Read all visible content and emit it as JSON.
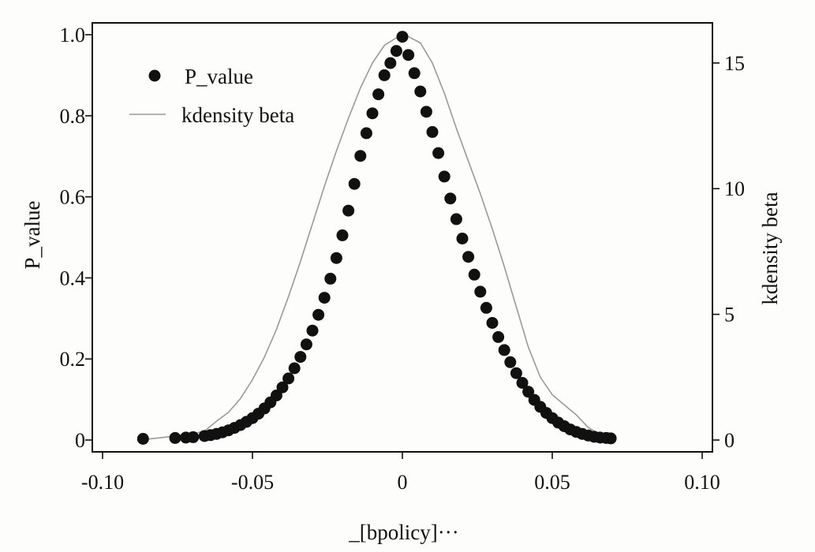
{
  "chart_data": {
    "type": "scatter",
    "xlabel": "_[bpolicy]···",
    "ylabel": "P_value",
    "y2label": "kdensity beta",
    "xlim": [
      -0.1,
      0.1
    ],
    "ylim": [
      0,
      1.0
    ],
    "y2lim": [
      0,
      16
    ],
    "x_ticks": [
      -0.1,
      -0.05,
      0,
      0.05,
      0.1
    ],
    "x_tick_labels": [
      "-0.10",
      "-0.05",
      "0",
      "0.05",
      "0.10"
    ],
    "y_ticks": [
      0,
      0.2,
      0.4,
      0.6,
      0.8,
      1.0
    ],
    "y_tick_labels": [
      "0",
      "0.2",
      "0.4",
      "0.6",
      "0.8",
      "1.0"
    ],
    "y2_ticks": [
      0,
      5,
      10,
      15
    ],
    "y2_tick_labels": [
      "0",
      "5",
      "10",
      "15"
    ],
    "grid": false,
    "legend": {
      "position": "top-left",
      "entries": [
        "P_value",
        "kdensity beta"
      ]
    },
    "series": [
      {
        "name": "P_value",
        "kind": "scatter",
        "axis": "left",
        "color": "#111111",
        "x": [
          -0.0865,
          -0.0758,
          -0.0722,
          -0.0698,
          -0.066,
          -0.064,
          -0.062,
          -0.06,
          -0.058,
          -0.056,
          -0.054,
          -0.052,
          -0.05,
          -0.048,
          -0.046,
          -0.044,
          -0.042,
          -0.04,
          -0.038,
          -0.036,
          -0.034,
          -0.032,
          -0.03,
          -0.028,
          -0.026,
          -0.024,
          -0.022,
          -0.02,
          -0.018,
          -0.016,
          -0.014,
          -0.012,
          -0.01,
          -0.008,
          -0.006,
          -0.004,
          -0.002,
          0.0,
          0.002,
          0.004,
          0.006,
          0.008,
          0.01,
          0.012,
          0.014,
          0.016,
          0.018,
          0.02,
          0.022,
          0.024,
          0.026,
          0.028,
          0.03,
          0.032,
          0.034,
          0.036,
          0.038,
          0.04,
          0.042,
          0.044,
          0.046,
          0.048,
          0.05,
          0.052,
          0.054,
          0.056,
          0.058,
          0.06,
          0.062,
          0.064,
          0.066,
          0.068,
          0.0695
        ],
        "y": [
          0.003,
          0.005,
          0.006,
          0.007,
          0.01,
          0.012,
          0.015,
          0.019,
          0.024,
          0.03,
          0.037,
          0.045,
          0.054,
          0.065,
          0.078,
          0.093,
          0.11,
          0.13,
          0.152,
          0.177,
          0.205,
          0.236,
          0.27,
          0.309,
          0.351,
          0.398,
          0.449,
          0.505,
          0.566,
          0.632,
          0.701,
          0.757,
          0.806,
          0.853,
          0.9,
          0.93,
          0.96,
          0.995,
          0.95,
          0.905,
          0.86,
          0.81,
          0.76,
          0.708,
          0.65,
          0.596,
          0.545,
          0.497,
          0.452,
          0.408,
          0.366,
          0.326,
          0.289,
          0.254,
          0.222,
          0.192,
          0.165,
          0.141,
          0.119,
          0.099,
          0.082,
          0.067,
          0.054,
          0.043,
          0.034,
          0.026,
          0.02,
          0.015,
          0.011,
          0.008,
          0.006,
          0.005,
          0.004
        ]
      },
      {
        "name": "kdensity beta",
        "kind": "line",
        "axis": "right",
        "color": "#9a9a9a",
        "x": [
          -0.0865,
          -0.08,
          -0.075,
          -0.07,
          -0.066,
          -0.062,
          -0.058,
          -0.054,
          -0.05,
          -0.046,
          -0.042,
          -0.038,
          -0.034,
          -0.03,
          -0.026,
          -0.022,
          -0.018,
          -0.014,
          -0.01,
          -0.006,
          -0.002,
          0.002,
          0.006,
          0.01,
          0.014,
          0.018,
          0.022,
          0.026,
          0.03,
          0.034,
          0.038,
          0.042,
          0.046,
          0.05,
          0.054,
          0.058,
          0.062,
          0.066,
          0.07
        ],
        "y": [
          0.02,
          0.1,
          0.18,
          0.25,
          0.35,
          0.75,
          1.1,
          1.65,
          2.4,
          3.3,
          4.4,
          5.7,
          7.1,
          8.6,
          10.1,
          11.5,
          12.8,
          14.0,
          15.0,
          15.7,
          16.0,
          16.05,
          15.8,
          15.0,
          13.8,
          12.4,
          11.1,
          9.8,
          8.4,
          6.9,
          5.3,
          3.7,
          2.5,
          1.8,
          1.4,
          1.0,
          0.5,
          0.2,
          0.1
        ]
      }
    ]
  }
}
